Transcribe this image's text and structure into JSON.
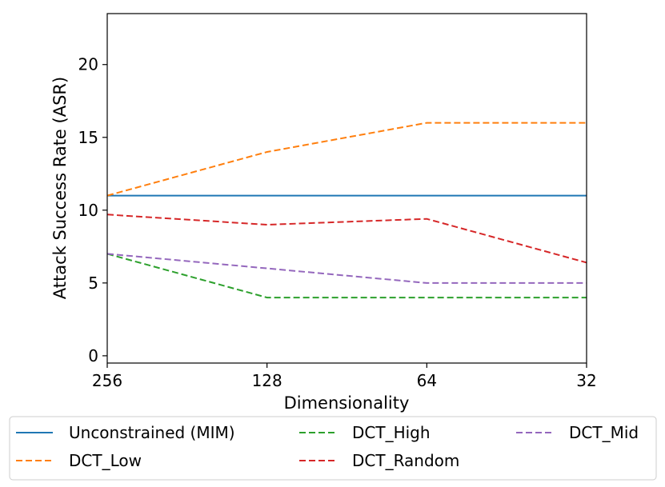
{
  "chart_data": {
    "type": "line",
    "xlabel": "Dimensionality",
    "ylabel": "Attack Success Rate (ASR)",
    "x": [
      "256",
      "128",
      "64",
      "32"
    ],
    "ylim": [
      -0.5,
      23.5
    ],
    "yticks": [
      "0",
      "5",
      "10",
      "15",
      "20"
    ],
    "grid": false,
    "legend_placement": "below plot",
    "series": [
      {
        "name": "Unconstrained (MIM)",
        "values": [
          11,
          11,
          11,
          11
        ],
        "color": "#1f77b4",
        "style": "solid"
      },
      {
        "name": "DCT_Low",
        "values": [
          11,
          14,
          16,
          16
        ],
        "color": "#ff7f0e",
        "style": "dashed"
      },
      {
        "name": "DCT_High",
        "values": [
          7,
          4,
          4,
          4
        ],
        "color": "#2ca02c",
        "style": "dashed"
      },
      {
        "name": "DCT_Random",
        "values": [
          9.7,
          9,
          9.4,
          6.4
        ],
        "color": "#d62728",
        "style": "dashed"
      },
      {
        "name": "DCT_Mid",
        "values": [
          7,
          6,
          5,
          5
        ],
        "color": "#9467bd",
        "style": "dashed"
      }
    ]
  }
}
